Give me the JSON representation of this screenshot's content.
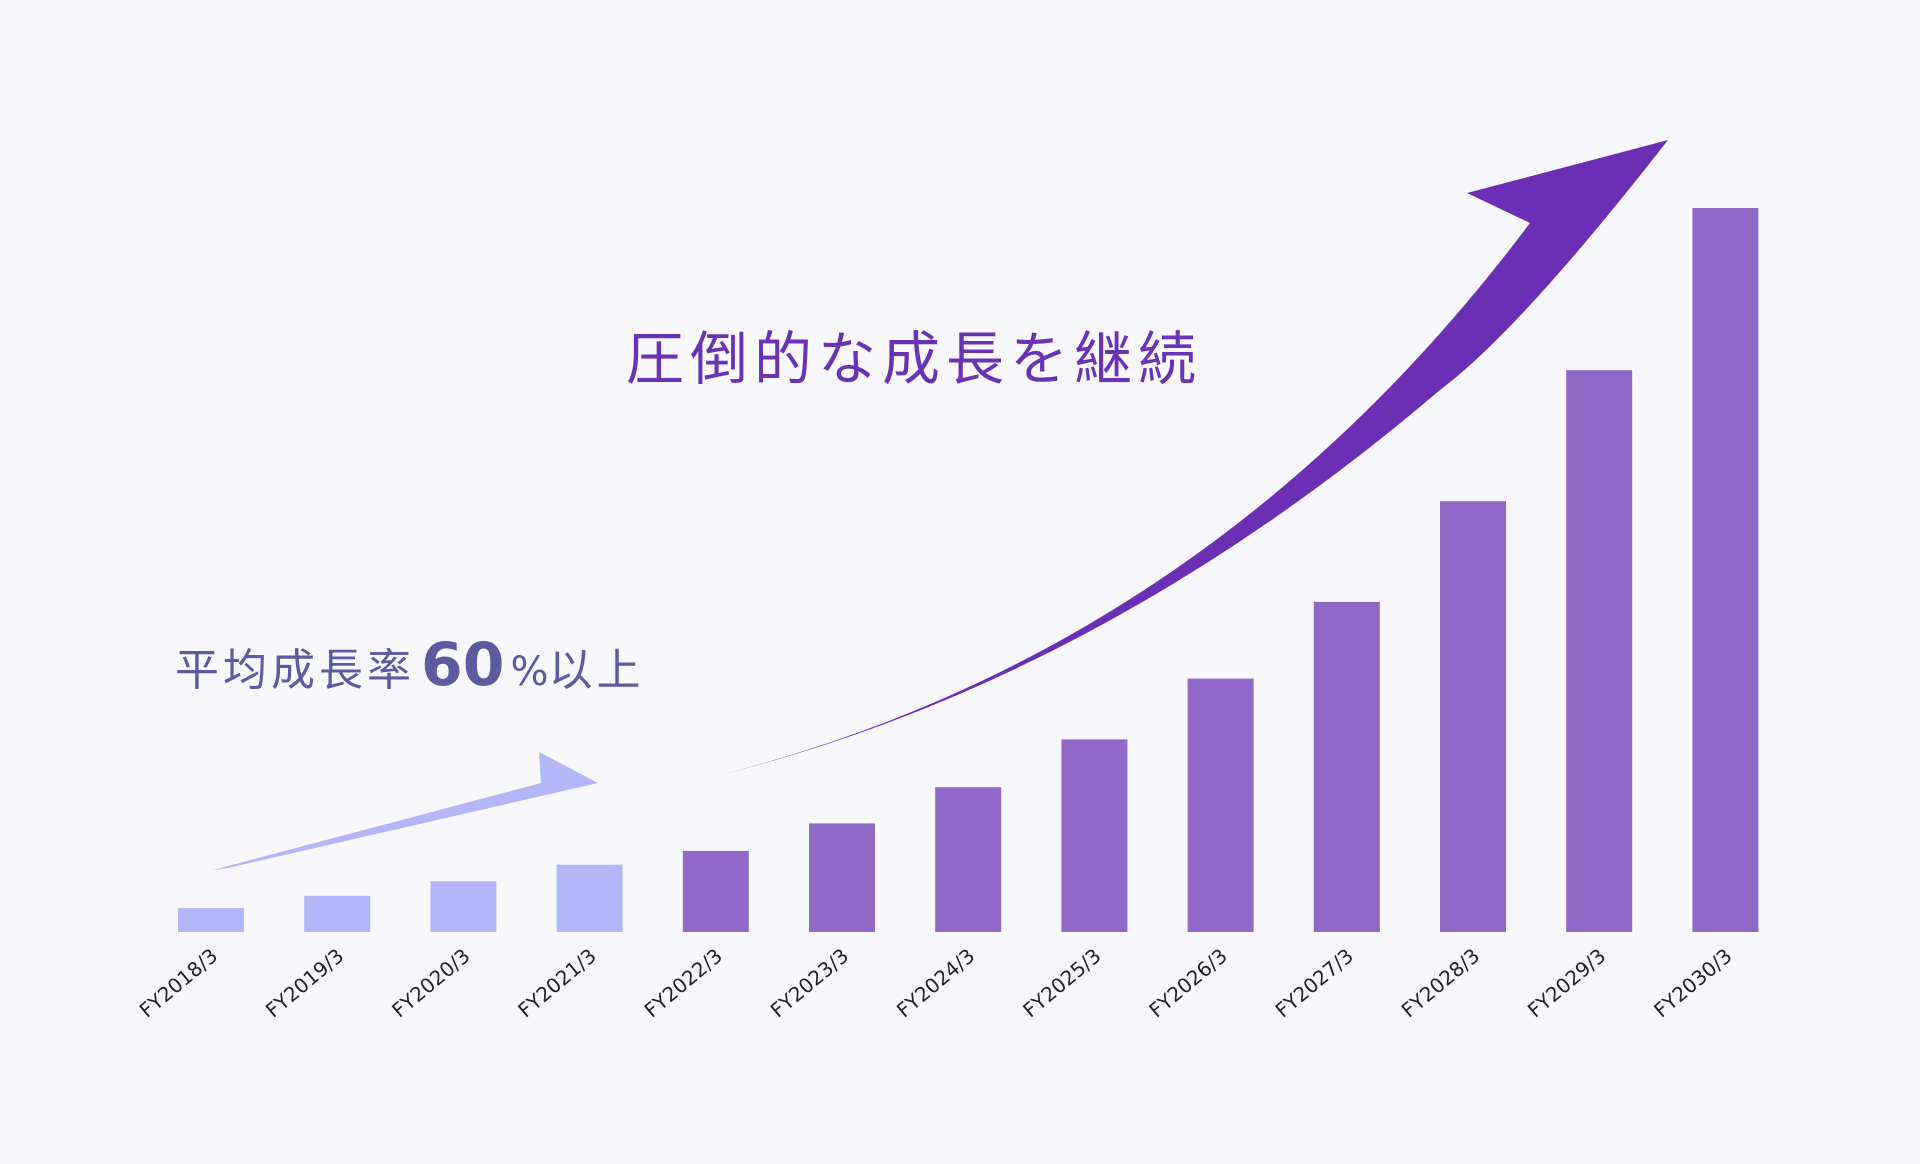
{
  "headline": "圧倒的な成長を継続",
  "subtitle": {
    "prefix": "平均成長率",
    "number": "60",
    "percent": "%",
    "suffix": "以上"
  },
  "colors": {
    "background": "#f8f8fc",
    "past_bar": "#b3b6f7",
    "future_bar": "#9069c8",
    "main_arrow": "#6a2fb5",
    "small_arrow": "#b3b6f7",
    "headline": "#6a33b5",
    "subtitle": "#5e5aa0"
  },
  "chart_data": {
    "type": "bar",
    "categories": [
      "FY2018/3",
      "FY2019/3",
      "FY2020/3",
      "FY2021/3",
      "FY2022/3",
      "FY2023/3",
      "FY2024/3",
      "FY2025/3",
      "FY2026/3",
      "FY2027/3",
      "FY2028/3",
      "FY2029/3",
      "FY2030/3"
    ],
    "values": [
      3.3,
      5,
      7,
      9.3,
      11.2,
      15,
      20,
      26.6,
      35,
      45.6,
      59.5,
      77.6,
      100
    ],
    "value_unit": "relative (unlabeled axis)",
    "ylim": [
      0,
      100
    ],
    "y_axis_visible": false,
    "grid": false,
    "legend": "none",
    "segments": [
      "past",
      "past",
      "past",
      "past",
      "future",
      "future",
      "future",
      "future",
      "future",
      "future",
      "future",
      "future",
      "future"
    ]
  }
}
